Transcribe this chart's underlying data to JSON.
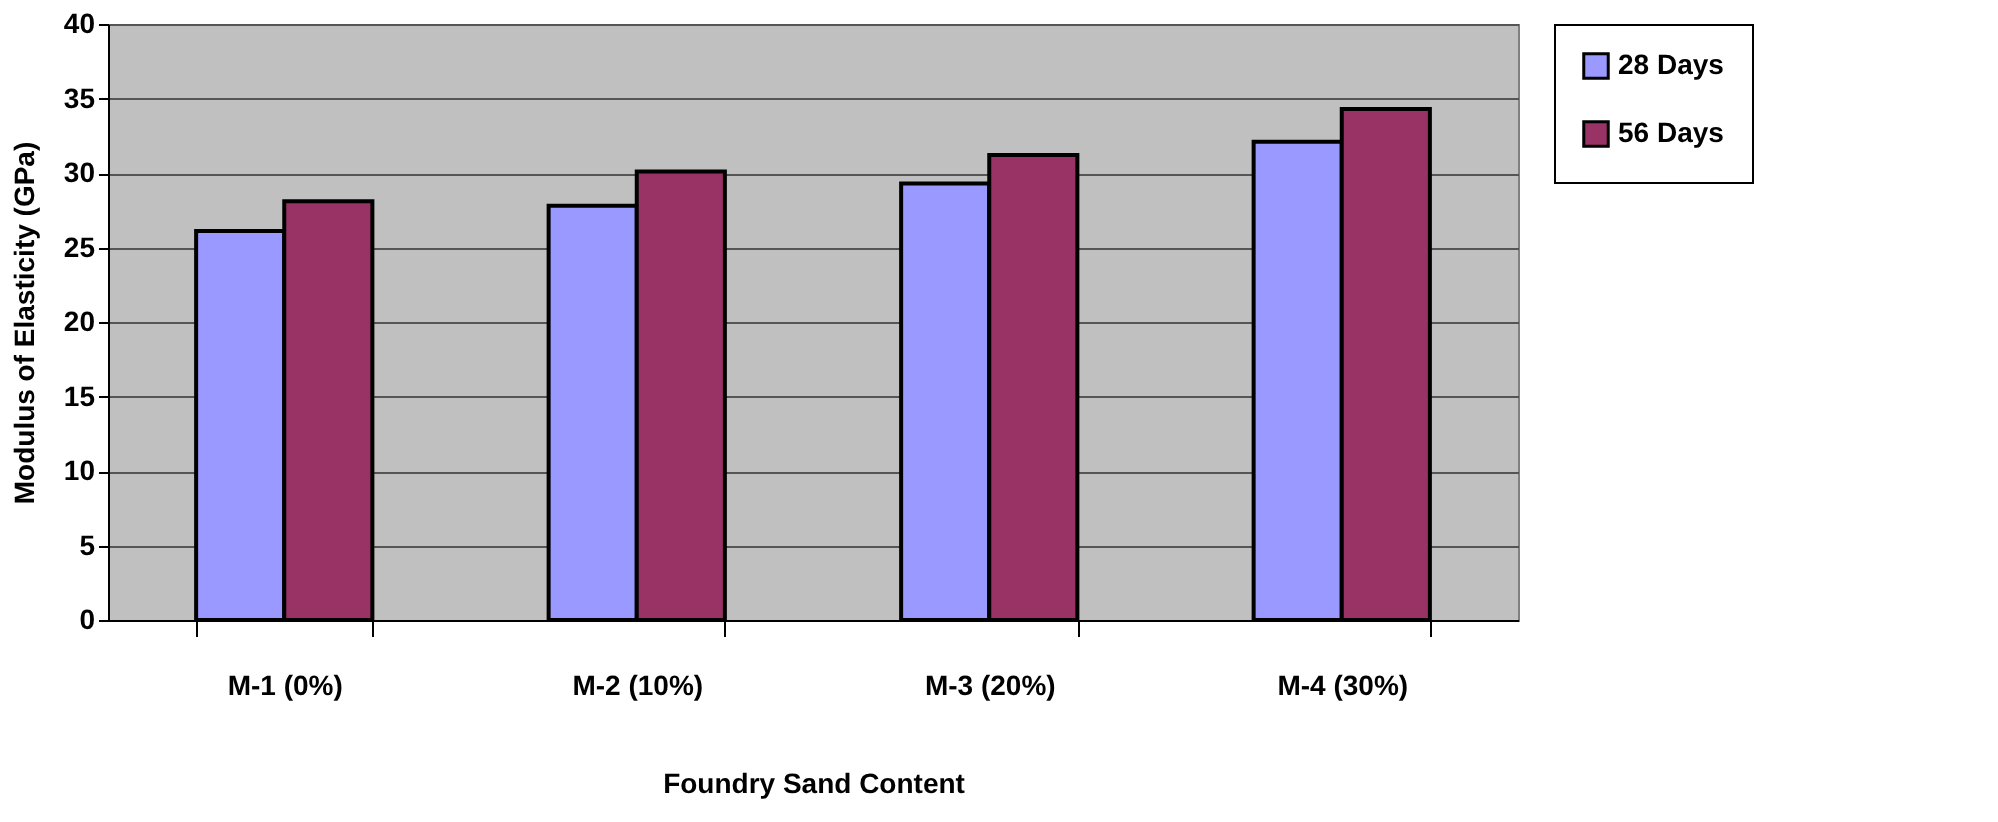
{
  "chart_data": {
    "type": "bar",
    "xlabel": "Foundry Sand Content",
    "ylabel": "Modulus of Elasticity (GPa)",
    "categories": [
      "M-1 (0%)",
      "M-2 (10%)",
      "M-3 (20%)",
      "M-4 (30%)"
    ],
    "series": [
      {
        "name": "28 Days",
        "color": "#9999ff",
        "values": [
          26.1,
          27.8,
          29.3,
          32.1
        ]
      },
      {
        "name": "56 Days",
        "color": "#993366",
        "values": [
          28.1,
          30.1,
          31.2,
          34.3
        ]
      }
    ],
    "ylim": [
      0,
      40
    ],
    "yticks": [
      0,
      5,
      10,
      15,
      20,
      25,
      30,
      35,
      40
    ],
    "grid": "y",
    "legend": "right"
  }
}
